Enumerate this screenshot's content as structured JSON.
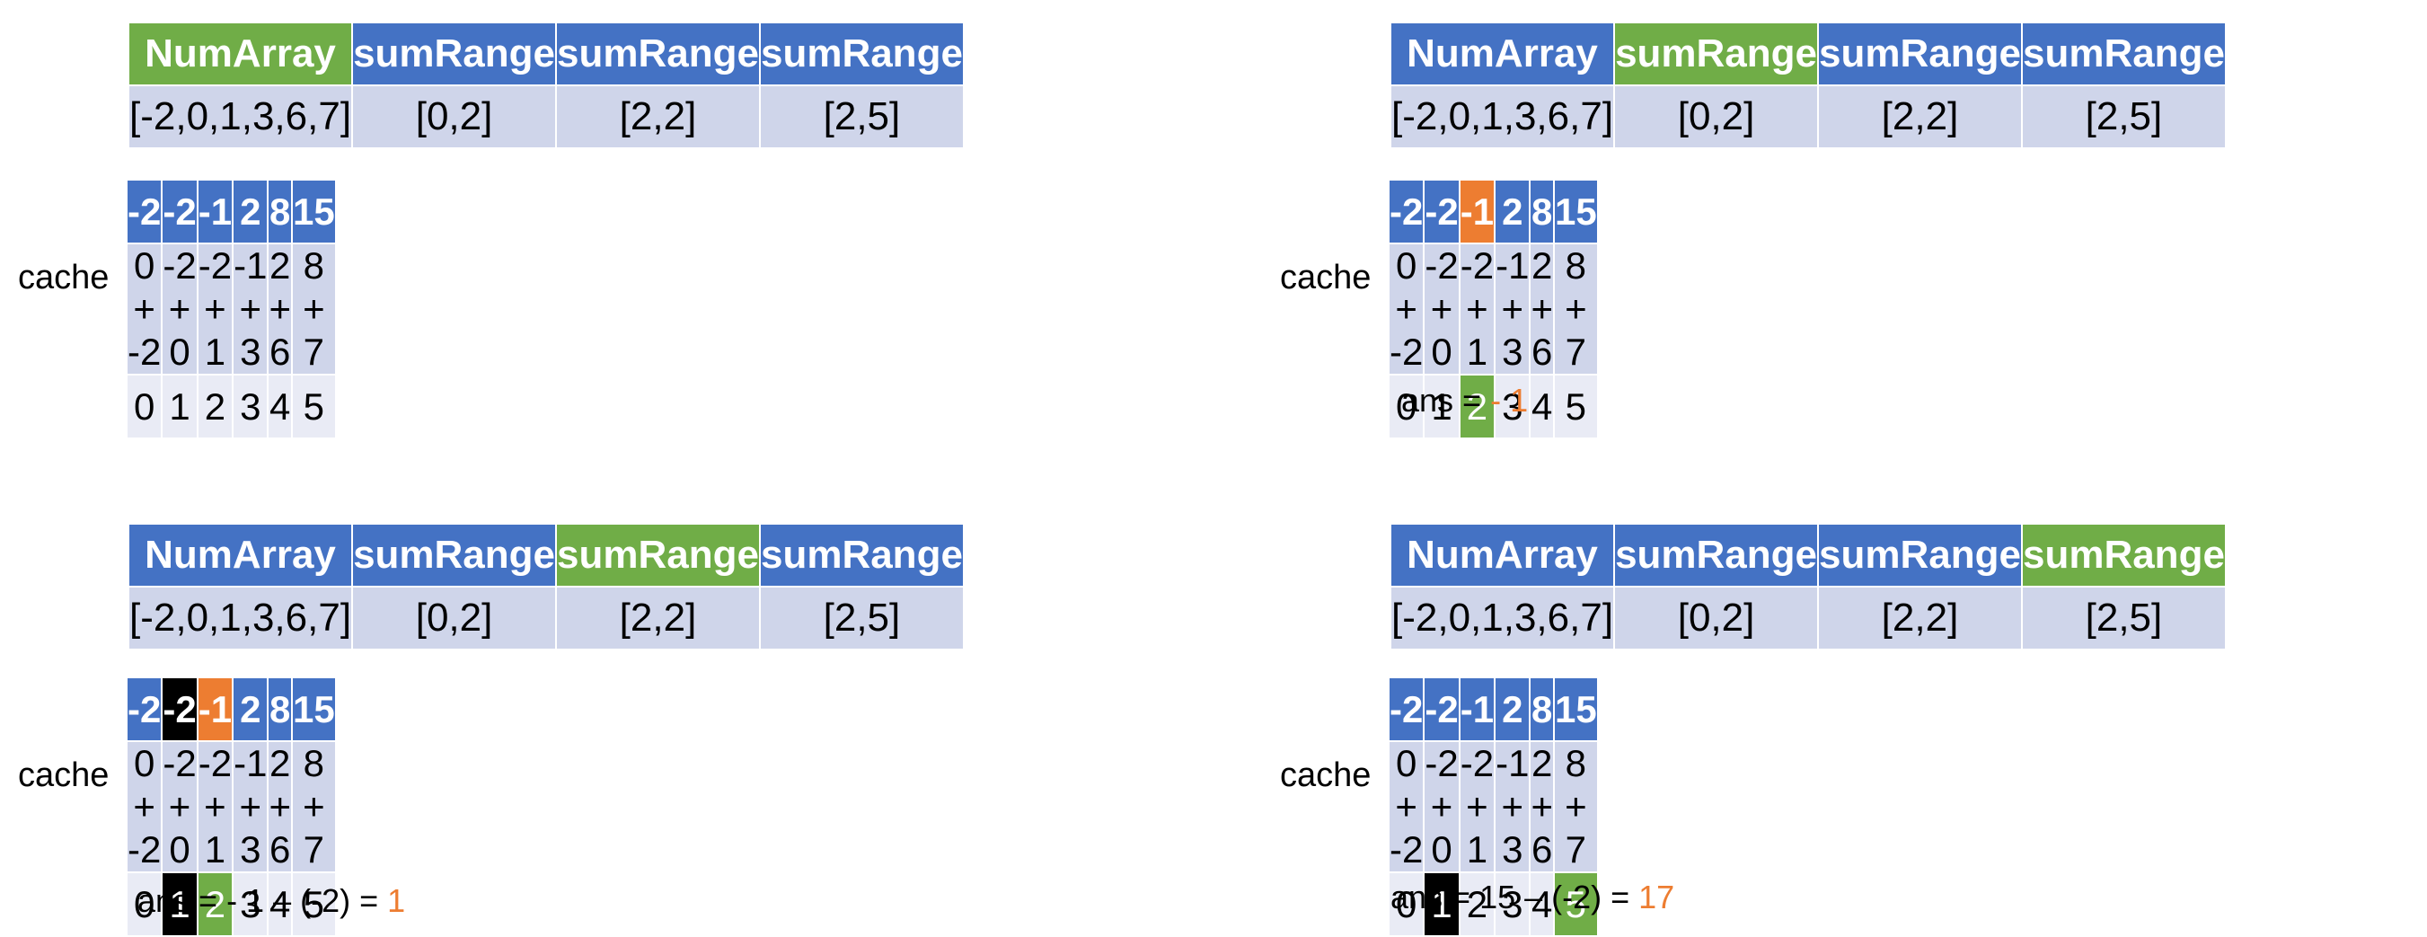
{
  "ops": {
    "headers": [
      "NumArray",
      "sumRange",
      "sumRange",
      "sumRange"
    ],
    "args": [
      "[-2,0,1,3,6,7]",
      "[0,2]",
      "[2,2]",
      "[2,5]"
    ]
  },
  "cache": {
    "label": "cache",
    "values": [
      "-2",
      "-2",
      "-1",
      "2",
      "8",
      "15"
    ],
    "formulas": [
      "0 + -2",
      "-2 + 0",
      "-2 + 1",
      "-1 + 3",
      "2 + 6",
      "8 + 7"
    ],
    "indices": [
      "0",
      "1",
      "2",
      "3",
      "4",
      "5"
    ]
  },
  "panels": [
    {
      "active_op": 0,
      "ans": null
    },
    {
      "active_op": 1,
      "ans": {
        "prefix": "ans = ",
        "result": "- 1"
      }
    },
    {
      "active_op": 2,
      "ans": {
        "prefix": "ans = - 1 – (-2) = ",
        "result": "1"
      }
    },
    {
      "active_op": 3,
      "ans": {
        "prefix": "ans = 15 – (-2) = ",
        "result": "17"
      }
    }
  ],
  "colors": {
    "header_blue": "#4472c4",
    "arg_row": "#cfd5ea",
    "index_row": "#e9ebf5",
    "active_green": "#70ad47",
    "orange": "#ed7d31",
    "black": "#000000"
  }
}
